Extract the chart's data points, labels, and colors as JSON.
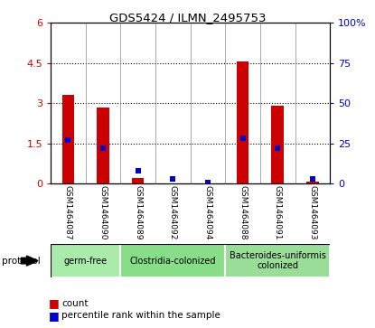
{
  "title": "GDS5424 / ILMN_2495753",
  "samples": [
    "GSM1464087",
    "GSM1464090",
    "GSM1464089",
    "GSM1464092",
    "GSM1464094",
    "GSM1464088",
    "GSM1464091",
    "GSM1464093"
  ],
  "count_values": [
    3.3,
    2.85,
    0.2,
    0.02,
    0.02,
    4.55,
    2.9,
    0.07
  ],
  "percentile_values": [
    27,
    22,
    8,
    3,
    1,
    28,
    22,
    3
  ],
  "groups": [
    {
      "label": "germ-free",
      "indices": [
        0,
        1
      ],
      "color": "#aaeaaa"
    },
    {
      "label": "Clostridia-colonized",
      "indices": [
        2,
        3,
        4
      ],
      "color": "#88dd88"
    },
    {
      "label": "Bacteroides-uniformis\ncolonized",
      "indices": [
        5,
        6,
        7
      ],
      "color": "#99dd99"
    }
  ],
  "ylim_left": [
    0,
    6
  ],
  "ylim_right": [
    0,
    100
  ],
  "yticks_left": [
    0,
    1.5,
    3.0,
    4.5,
    6
  ],
  "ytick_left_labels": [
    "0",
    "1.5",
    "3",
    "4.5",
    "6"
  ],
  "yticks_right": [
    0,
    25,
    50,
    75,
    100
  ],
  "ytick_right_labels": [
    "0",
    "25",
    "50",
    "75",
    "100%"
  ],
  "ylabel_left_color": "#cc0000",
  "ylabel_right_color": "#0000cc",
  "bar_color": "#cc0000",
  "dot_color": "#0000cc",
  "bar_width": 0.35,
  "plot_bg_color": "#ffffff",
  "sample_label_bg": "#cccccc",
  "legend_count_label": "count",
  "legend_percentile_label": "percentile rank within the sample",
  "protocol_label": "protocol"
}
